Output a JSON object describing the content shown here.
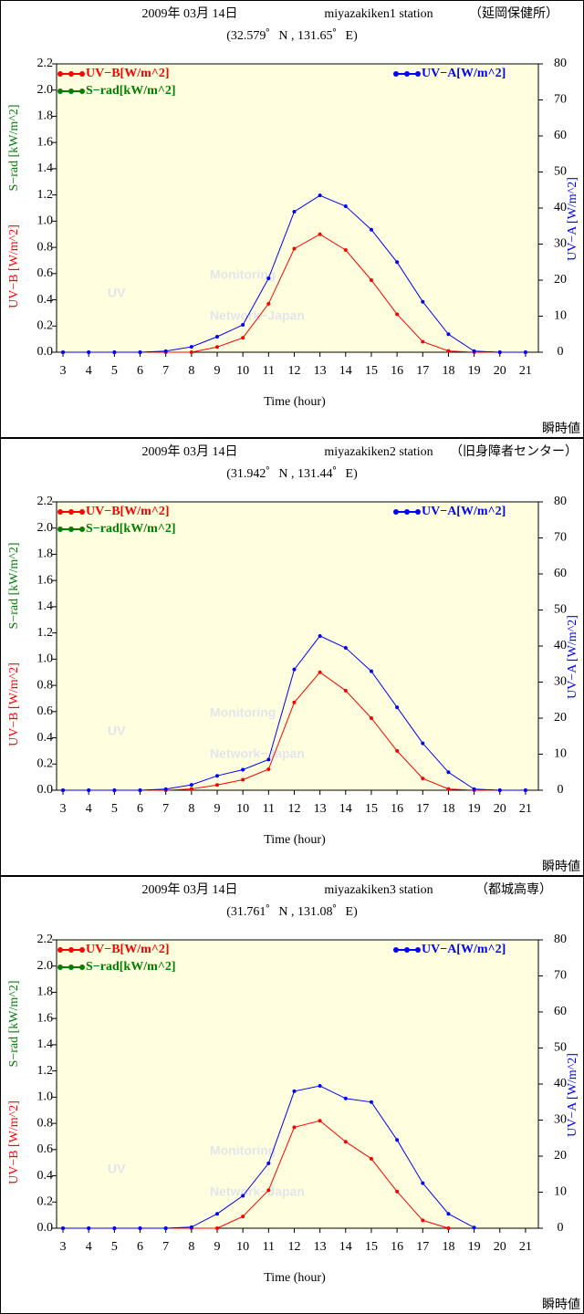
{
  "chart_data": [
    {
      "type": "line",
      "title": "2009年 03月 14日",
      "station": "miyazakiken1 station",
      "site": "（延岡保健所）",
      "subtitle": "(32.579゜N , 131.65゜E)",
      "xlabel": "Time (hour)",
      "note": "瞬時値",
      "watermark": [
        "UV",
        "Monitoring",
        "Network−Japan"
      ],
      "background": "#ffffe0",
      "x": [
        3,
        4,
        5,
        6,
        7,
        8,
        9,
        10,
        11,
        12,
        13,
        14,
        15,
        16,
        17,
        18,
        19,
        20,
        21
      ],
      "xlim": [
        2.75,
        21.5
      ],
      "xticks": [
        3,
        4,
        5,
        6,
        7,
        8,
        9,
        10,
        11,
        12,
        13,
        14,
        15,
        16,
        17,
        18,
        19,
        20,
        21
      ],
      "ylim": [
        0,
        2.2
      ],
      "yticks": [
        {
          "value": 0,
          "label": "0.0"
        },
        0.2,
        0.4,
        0.6,
        0.8,
        {
          "value": 1,
          "label": "1.0"
        },
        1.2,
        1.4,
        1.6,
        1.8,
        {
          "value": 2,
          "label": "2.0"
        },
        2.2
      ],
      "y2lim": [
        0,
        80
      ],
      "y2ticks": [
        0,
        10,
        20,
        30,
        40,
        50,
        60,
        70,
        80
      ],
      "series": [
        {
          "name": "UV−B[W/m^2]",
          "axis_label": "UV−B [W/m^2]",
          "color": "#ff0000",
          "legend": "upper left",
          "values": [
            0,
            0,
            0,
            0,
            0,
            0,
            0.04,
            0.11,
            0.37,
            0.79,
            0.9,
            0.78,
            0.55,
            0.29,
            0.08,
            0.01,
            0,
            0,
            0
          ]
        },
        {
          "name": "S−rad[kW/m^2]",
          "axis_label": "S−rad [kW/m^2]",
          "color": "#008000",
          "legend": "upper left",
          "values": [
            null,
            null,
            null,
            null,
            null,
            null,
            null,
            null,
            null,
            null,
            null,
            null,
            null,
            null,
            null,
            null,
            null,
            null,
            null
          ]
        },
        {
          "name": "UV−A[W/m^2]",
          "axis_label": "UV−A [W/m^2]",
          "color": "#0000ff",
          "legend": "upper right",
          "axis": "y2",
          "values": [
            0,
            0,
            0,
            0,
            0.3,
            1.5,
            4.3,
            7.6,
            20.5,
            39,
            43.5,
            40.5,
            34,
            25,
            14,
            5,
            0.3,
            0,
            0
          ]
        }
      ]
    },
    {
      "type": "line",
      "title": "2009年 03月 14日",
      "station": "miyazakiken2 station",
      "site": "（旧身障者センター）",
      "subtitle": "(31.942゜N , 131.44゜E)",
      "xlabel": "Time (hour)",
      "note": "瞬時値",
      "watermark": [
        "UV",
        "Monitoring",
        "Network−Japan"
      ],
      "background": "#ffffe0",
      "x": [
        3,
        4,
        5,
        6,
        7,
        8,
        9,
        10,
        11,
        12,
        13,
        14,
        15,
        16,
        17,
        18,
        19,
        20,
        21
      ],
      "xlim": [
        2.75,
        21.5
      ],
      "xticks": [
        3,
        4,
        5,
        6,
        7,
        8,
        9,
        10,
        11,
        12,
        13,
        14,
        15,
        16,
        17,
        18,
        19,
        20,
        21
      ],
      "ylim": [
        0,
        2.2
      ],
      "yticks": [
        {
          "value": 0,
          "label": "0.0"
        },
        0.2,
        0.4,
        0.6,
        0.8,
        {
          "value": 1,
          "label": "1.0"
        },
        1.2,
        1.4,
        1.6,
        1.8,
        {
          "value": 2,
          "label": "2.0"
        },
        2.2
      ],
      "y2lim": [
        0,
        80
      ],
      "y2ticks": [
        0,
        10,
        20,
        30,
        40,
        50,
        60,
        70,
        80
      ],
      "series": [
        {
          "name": "UV−B[W/m^2]",
          "axis_label": "UV−B [W/m^2]",
          "color": "#ff0000",
          "legend": "upper left",
          "values": [
            0,
            0,
            0,
            0,
            0,
            0.01,
            0.04,
            0.08,
            0.16,
            0.67,
            0.9,
            0.76,
            0.55,
            0.3,
            0.09,
            0.01,
            0,
            0,
            0
          ]
        },
        {
          "name": "S−rad[kW/m^2]",
          "axis_label": "S−rad [kW/m^2]",
          "color": "#008000",
          "legend": "upper left",
          "values": [
            null,
            null,
            null,
            null,
            null,
            null,
            null,
            null,
            null,
            null,
            null,
            null,
            null,
            null,
            null,
            null,
            null,
            null,
            null
          ]
        },
        {
          "name": "UV−A[W/m^2]",
          "axis_label": "UV−A [W/m^2]",
          "color": "#0000ff",
          "legend": "upper right",
          "axis": "y2",
          "values": [
            0,
            0,
            0,
            0,
            0.3,
            1.5,
            4,
            5.7,
            8.5,
            33.5,
            42.8,
            39.5,
            33,
            23,
            13,
            5,
            0.3,
            0,
            0
          ]
        }
      ]
    },
    {
      "type": "line",
      "title": "2009年 03月 14日",
      "station": "miyazakiken3 station",
      "site": "（都城高専）",
      "subtitle": "(31.761゜N , 131.08゜E)",
      "xlabel": "Time (hour)",
      "note": "瞬時値",
      "watermark": [
        "UV",
        "Monitoring",
        "Network−Japan"
      ],
      "background": "#ffffe0",
      "x": [
        3,
        4,
        5,
        6,
        7,
        8,
        9,
        10,
        11,
        12,
        13,
        14,
        15,
        16,
        17,
        18,
        19,
        20,
        21
      ],
      "xlim": [
        2.75,
        21.5
      ],
      "xticks": [
        3,
        4,
        5,
        6,
        7,
        8,
        9,
        10,
        11,
        12,
        13,
        14,
        15,
        16,
        17,
        18,
        19,
        20,
        21
      ],
      "ylim": [
        0,
        2.2
      ],
      "yticks": [
        {
          "value": 0,
          "label": "0.0"
        },
        0.2,
        0.4,
        0.6,
        0.8,
        {
          "value": 1,
          "label": "1.0"
        },
        1.2,
        1.4,
        1.6,
        1.8,
        {
          "value": 2,
          "label": "2.0"
        },
        2.2
      ],
      "y2lim": [
        0,
        80
      ],
      "y2ticks": [
        0,
        10,
        20,
        30,
        40,
        50,
        60,
        70,
        80
      ],
      "series": [
        {
          "name": "UV−B[W/m^2]",
          "axis_label": "UV−B [W/m^2]",
          "color": "#ff0000",
          "legend": "upper left",
          "values": [
            0,
            0,
            0,
            0,
            0,
            0,
            0,
            0.09,
            0.29,
            0.77,
            0.82,
            0.66,
            0.53,
            0.28,
            0.06,
            0,
            null,
            null,
            null
          ]
        },
        {
          "name": "S−rad[kW/m^2]",
          "axis_label": "S−rad [kW/m^2]",
          "color": "#008000",
          "legend": "upper left",
          "values": [
            null,
            null,
            null,
            null,
            null,
            null,
            null,
            null,
            null,
            null,
            null,
            null,
            null,
            null,
            null,
            null,
            null,
            null,
            null
          ]
        },
        {
          "name": "UV−A[W/m^2]",
          "axis_label": "UV−A [W/m^2]",
          "color": "#0000ff",
          "legend": "upper right",
          "axis": "y2",
          "values": [
            0,
            0,
            0,
            0,
            0,
            0.3,
            4,
            9,
            18,
            38,
            39.5,
            36,
            35,
            24.5,
            12.5,
            4,
            0.2,
            null,
            null
          ]
        }
      ]
    }
  ]
}
